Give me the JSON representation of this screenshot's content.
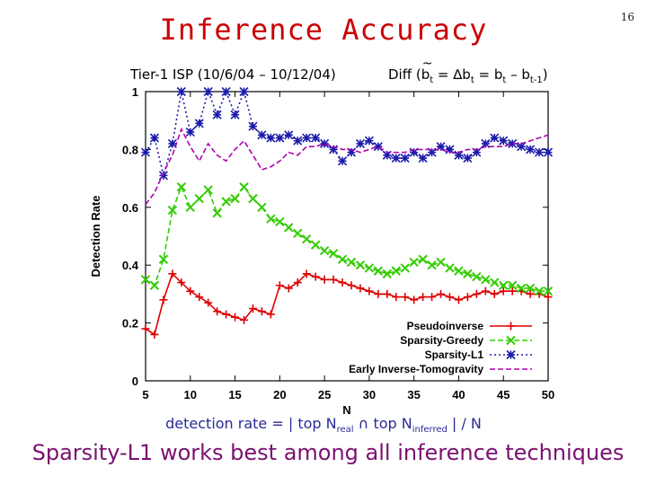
{
  "slide": {
    "title": "Inference Accuracy",
    "page_number": "16",
    "subtitle_left": "Tier-1 ISP (10/6/04 – 10/12/04)",
    "subtitle_right": {
      "p1": "Diff (",
      "b_tilde": "b",
      "t1": "t",
      "p2": " = ∆b",
      "t2": "t",
      "p3": " = b",
      "t3": "t",
      "p4": " – b",
      "t4": "t-1",
      "p5": ")"
    },
    "formula": {
      "p1": "detection rate = | top N",
      "s1": "real",
      "p2": " ∩ top N",
      "s2": "inferred",
      "p3": " | / N"
    },
    "conclusion": "Sparsity-L1 works best among all inference techniques"
  },
  "chart_data": {
    "type": "line",
    "xlabel": "N",
    "ylabel": "Detection Rate",
    "xlim": [
      5,
      50
    ],
    "ylim": [
      0,
      1
    ],
    "xticks": [
      5,
      10,
      15,
      20,
      25,
      30,
      35,
      40,
      45,
      50
    ],
    "yticks": [
      0,
      0.2,
      0.4,
      0.6,
      0.8,
      1
    ],
    "ytick_labels": [
      "0",
      "0.2",
      "0.4",
      "0.6",
      "0.8",
      "1"
    ],
    "legend_position": "bottom-right",
    "grid": false,
    "x": [
      5,
      6,
      7,
      8,
      9,
      10,
      11,
      12,
      13,
      14,
      15,
      16,
      17,
      18,
      19,
      20,
      21,
      22,
      23,
      24,
      25,
      26,
      27,
      28,
      29,
      30,
      31,
      32,
      33,
      34,
      35,
      36,
      37,
      38,
      39,
      40,
      41,
      42,
      43,
      44,
      45,
      46,
      47,
      48,
      49,
      50
    ],
    "series": [
      {
        "name": "Pseudoinverse",
        "color": "#dd0000",
        "marker": "plus",
        "dash": "solid",
        "values": [
          0.18,
          0.16,
          0.28,
          0.37,
          0.34,
          0.31,
          0.29,
          0.27,
          0.24,
          0.23,
          0.22,
          0.21,
          0.25,
          0.24,
          0.23,
          0.33,
          0.32,
          0.34,
          0.37,
          0.36,
          0.35,
          0.35,
          0.34,
          0.33,
          0.32,
          0.31,
          0.3,
          0.3,
          0.29,
          0.29,
          0.28,
          0.29,
          0.29,
          0.3,
          0.29,
          0.28,
          0.29,
          0.3,
          0.31,
          0.3,
          0.31,
          0.31,
          0.31,
          0.3,
          0.3,
          0.29
        ]
      },
      {
        "name": "Sparsity-Greedy",
        "color": "#33cc00",
        "marker": "x",
        "dash": "dash",
        "values": [
          0.35,
          0.33,
          0.42,
          0.59,
          0.67,
          0.6,
          0.63,
          0.66,
          0.58,
          0.62,
          0.63,
          0.67,
          0.63,
          0.6,
          0.56,
          0.55,
          0.53,
          0.51,
          0.49,
          0.47,
          0.45,
          0.44,
          0.42,
          0.41,
          0.4,
          0.39,
          0.38,
          0.37,
          0.38,
          0.39,
          0.41,
          0.42,
          0.4,
          0.41,
          0.39,
          0.38,
          0.37,
          0.36,
          0.35,
          0.34,
          0.33,
          0.33,
          0.32,
          0.32,
          0.31,
          0.31
        ]
      },
      {
        "name": "Sparsity-L1",
        "color": "#1a1aaa",
        "marker": "star",
        "dash": "dot",
        "values": [
          0.79,
          0.84,
          0.71,
          0.82,
          1.0,
          0.86,
          0.89,
          1.0,
          0.92,
          1.0,
          0.92,
          1.0,
          0.88,
          0.85,
          0.84,
          0.84,
          0.85,
          0.83,
          0.84,
          0.84,
          0.82,
          0.8,
          0.76,
          0.79,
          0.82,
          0.83,
          0.81,
          0.78,
          0.77,
          0.77,
          0.79,
          0.77,
          0.79,
          0.81,
          0.8,
          0.78,
          0.77,
          0.79,
          0.82,
          0.84,
          0.83,
          0.82,
          0.81,
          0.8,
          0.79,
          0.79
        ]
      },
      {
        "name": "Early Inverse-Tomogravity",
        "color": "#b000b0",
        "marker": "none",
        "dash": "dash",
        "values": [
          0.61,
          0.65,
          0.72,
          0.78,
          0.87,
          0.81,
          0.76,
          0.82,
          0.78,
          0.76,
          0.8,
          0.83,
          0.78,
          0.73,
          0.74,
          0.76,
          0.79,
          0.78,
          0.81,
          0.81,
          0.82,
          0.81,
          0.8,
          0.8,
          0.79,
          0.8,
          0.81,
          0.79,
          0.79,
          0.79,
          0.8,
          0.8,
          0.8,
          0.8,
          0.79,
          0.79,
          0.8,
          0.8,
          0.81,
          0.81,
          0.81,
          0.82,
          0.82,
          0.83,
          0.84,
          0.85
        ]
      }
    ]
  }
}
